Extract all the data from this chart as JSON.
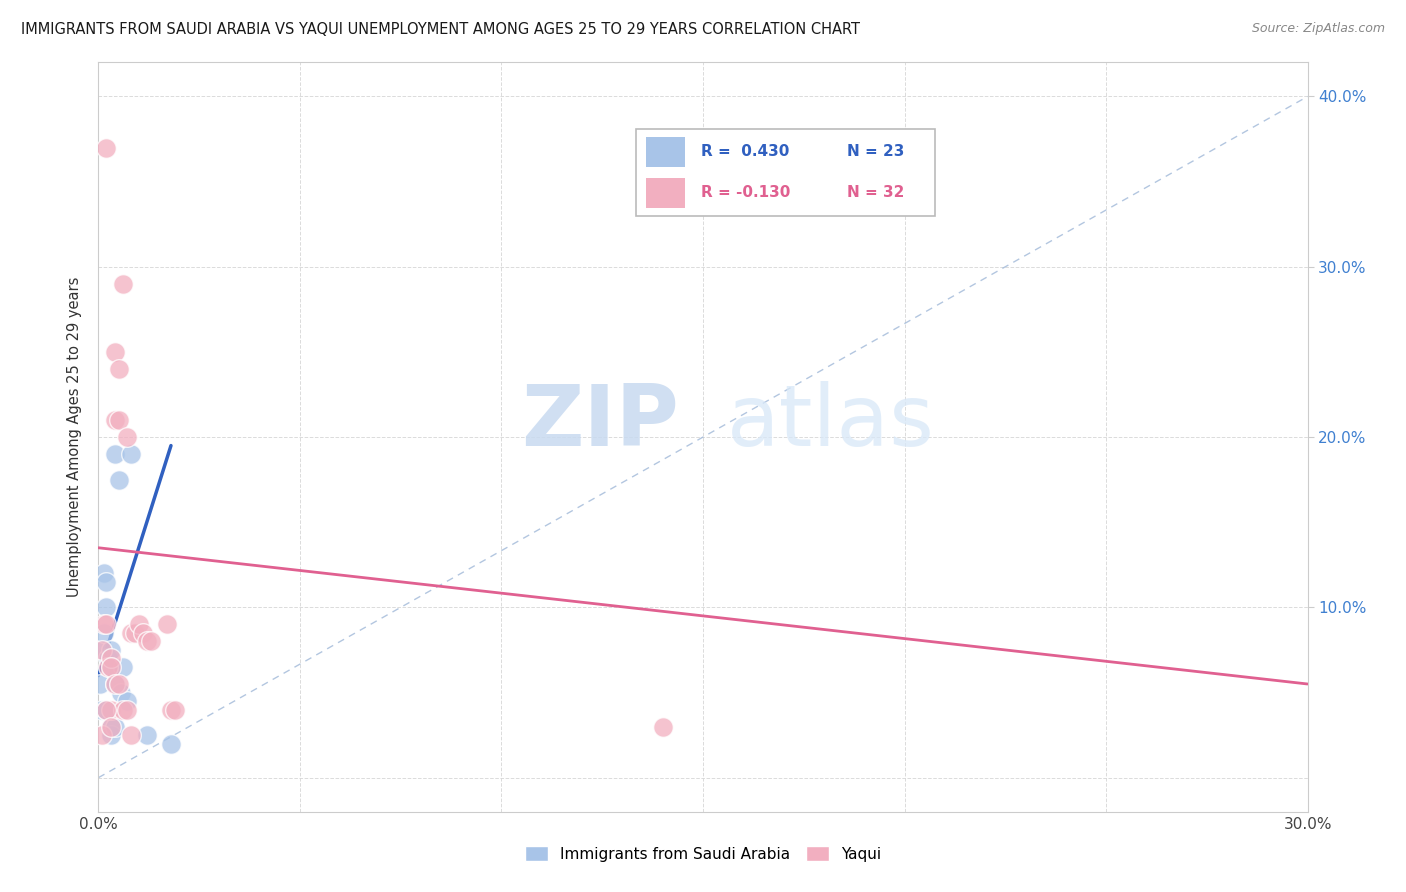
{
  "title": "IMMIGRANTS FROM SAUDI ARABIA VS YAQUI UNEMPLOYMENT AMONG AGES 25 TO 29 YEARS CORRELATION CHART",
  "source": "Source: ZipAtlas.com",
  "ylabel": "Unemployment Among Ages 25 to 29 years",
  "xlim": [
    0.0,
    0.3
  ],
  "ylim": [
    -0.02,
    0.42
  ],
  "xticks": [
    0.0,
    0.05,
    0.1,
    0.15,
    0.2,
    0.25,
    0.3
  ],
  "xticklabels": [
    "0.0%",
    "",
    "",
    "",
    "",
    "",
    "30.0%"
  ],
  "yticks_right": [
    0.1,
    0.2,
    0.3,
    0.4
  ],
  "yticklabels_right": [
    "10.0%",
    "20.0%",
    "30.0%",
    "40.0%"
  ],
  "blue_color": "#a8c4e8",
  "pink_color": "#f2afc0",
  "blue_line_color": "#3060c0",
  "pink_line_color": "#e06090",
  "grid_color": "#d8d8d8",
  "blue_scatter_x": [
    0.0005,
    0.001,
    0.001,
    0.0015,
    0.0015,
    0.002,
    0.002,
    0.002,
    0.0025,
    0.003,
    0.003,
    0.003,
    0.003,
    0.004,
    0.004,
    0.004,
    0.005,
    0.0055,
    0.006,
    0.007,
    0.008,
    0.012,
    0.018
  ],
  "blue_scatter_y": [
    0.055,
    0.075,
    0.04,
    0.12,
    0.085,
    0.115,
    0.1,
    0.04,
    0.07,
    0.075,
    0.065,
    0.03,
    0.025,
    0.19,
    0.055,
    0.03,
    0.175,
    0.05,
    0.065,
    0.045,
    0.19,
    0.025,
    0.02
  ],
  "pink_scatter_x": [
    0.001,
    0.0015,
    0.002,
    0.002,
    0.0025,
    0.003,
    0.003,
    0.003,
    0.004,
    0.004,
    0.004,
    0.005,
    0.005,
    0.005,
    0.006,
    0.006,
    0.007,
    0.007,
    0.008,
    0.008,
    0.009,
    0.01,
    0.011,
    0.012,
    0.013,
    0.017,
    0.018,
    0.019,
    0.14,
    0.001,
    0.002,
    0.003
  ],
  "pink_scatter_y": [
    0.075,
    0.09,
    0.37,
    0.09,
    0.065,
    0.07,
    0.065,
    0.04,
    0.25,
    0.21,
    0.055,
    0.24,
    0.21,
    0.055,
    0.29,
    0.04,
    0.2,
    0.04,
    0.085,
    0.025,
    0.085,
    0.09,
    0.085,
    0.08,
    0.08,
    0.09,
    0.04,
    0.04,
    0.03,
    0.025,
    0.04,
    0.03
  ],
  "blue_trend_x": [
    0.0,
    0.018
  ],
  "blue_trend_y": [
    0.06,
    0.195
  ],
  "pink_trend_x": [
    0.0,
    0.3
  ],
  "pink_trend_y": [
    0.135,
    0.055
  ],
  "diag_line_x": [
    0.0,
    0.3
  ],
  "diag_line_y": [
    0.0,
    0.4
  ],
  "legend_r1": "R =  0.430",
  "legend_n1": "N = 23",
  "legend_r2": "R = -0.130",
  "legend_n2": "N = 32",
  "watermark_zip": "ZIP",
  "watermark_atlas": "atlas"
}
